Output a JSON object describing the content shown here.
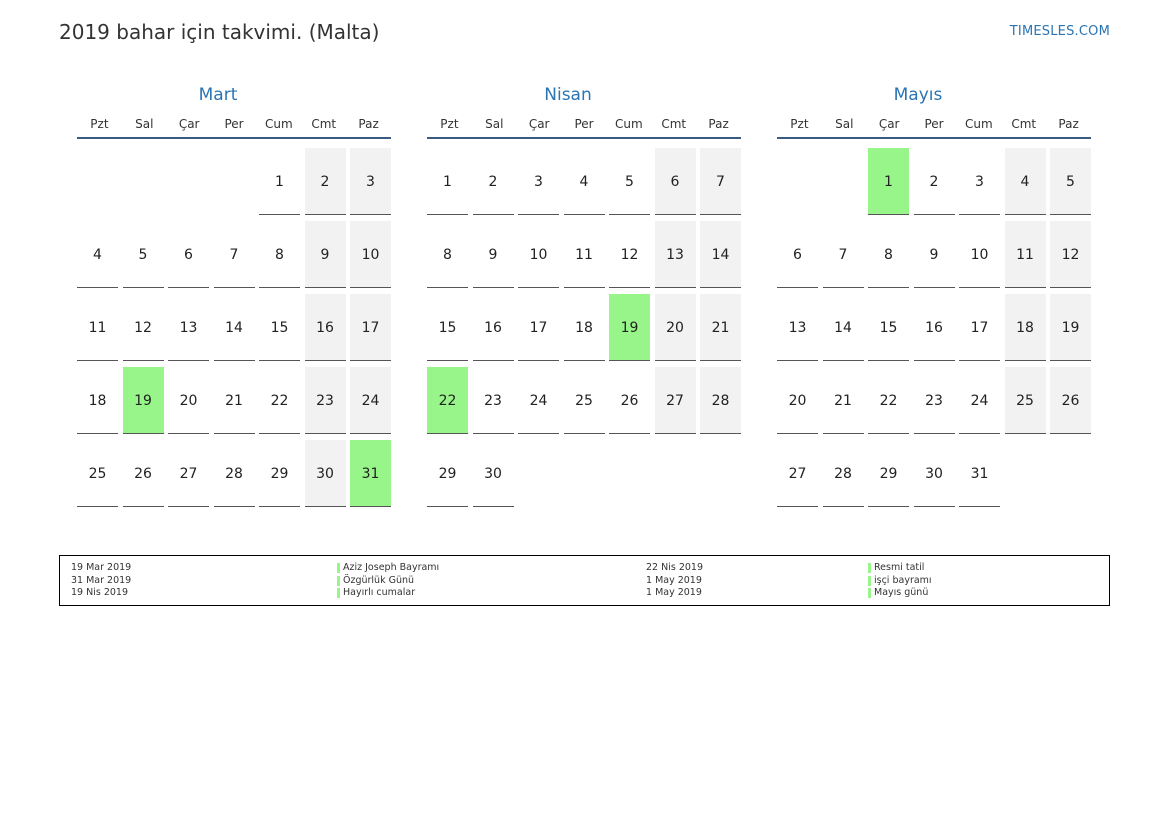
{
  "title": "2019 bahar için takvimi. (Malta)",
  "site": "TIMESLES.COM",
  "colors": {
    "accent": "#2a74b4",
    "holiday": "#98f58a",
    "weekend": "#f2f2f2",
    "header_rule": "#3a5a80"
  },
  "weekdays": [
    "Pzt",
    "Sal",
    "Çar",
    "Per",
    "Cum",
    "Cmt",
    "Paz"
  ],
  "months": [
    {
      "name": "Mart",
      "start_col": 4,
      "days": 31,
      "holidays": [
        19,
        31
      ]
    },
    {
      "name": "Nisan",
      "start_col": 0,
      "days": 30,
      "holidays": [
        19,
        22
      ]
    },
    {
      "name": "Mayıs",
      "start_col": 2,
      "days": 31,
      "holidays": [
        1
      ]
    }
  ],
  "legend": {
    "left": [
      {
        "date": "19 Mar 2019",
        "name": "Aziz Joseph Bayramı"
      },
      {
        "date": "31 Mar 2019",
        "name": "Özgürlük Günü"
      },
      {
        "date": "19 Nis 2019",
        "name": "Hayırlı cumalar"
      }
    ],
    "right": [
      {
        "date": "22 Nis 2019",
        "name": "Resmi tatil"
      },
      {
        "date": "1 May 2019",
        "name": "işçi bayramı"
      },
      {
        "date": "1 May 2019",
        "name": "Mayıs günü"
      }
    ]
  }
}
